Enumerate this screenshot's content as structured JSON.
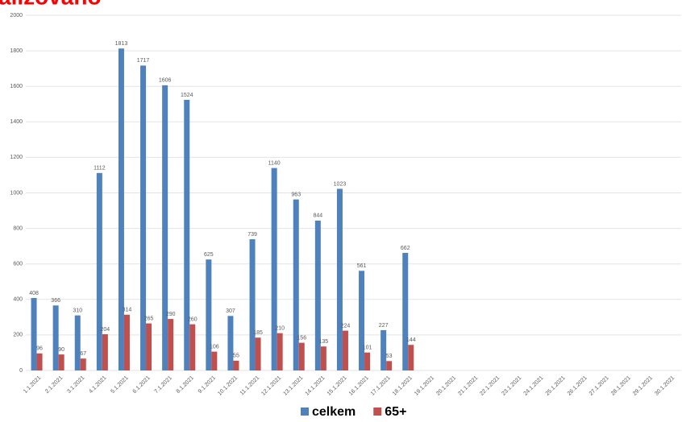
{
  "chart_data": {
    "type": "bar",
    "title": "alizováno",
    "categories": [
      "1.1.2021",
      "2.1.2021",
      "3.1.2021",
      "4.1.2021",
      "5.1.2021",
      "6.1.2021",
      "7.1.2021",
      "8.1.2021",
      "9.1.2021",
      "10.1.2021",
      "11.1.2021",
      "12.1.2021",
      "13.1.2021",
      "14.1.2021",
      "15.1.2021",
      "16.1.2021",
      "17.1.2021",
      "18.1.2021",
      "19.1.2021",
      "20.1.2021",
      "21.1.2021",
      "22.1.2021",
      "23.1.2021",
      "24.1.2021",
      "25.1.2021",
      "26.1.2021",
      "27.1.2021",
      "28.1.2021",
      "29.1.2021",
      "30.1.2021"
    ],
    "series": [
      {
        "name": "celkem",
        "color": "#4f81bd",
        "values": [
          408,
          366,
          310,
          1112,
          1813,
          1717,
          1606,
          1524,
          625,
          307,
          739,
          1140,
          963,
          844,
          1023,
          561,
          227,
          662,
          null,
          null,
          null,
          null,
          null,
          null,
          null,
          null,
          null,
          null,
          null,
          null
        ]
      },
      {
        "name": "65+",
        "color": "#c0504d",
        "values": [
          96,
          90,
          67,
          204,
          314,
          265,
          290,
          260,
          106,
          55,
          185,
          210,
          156,
          135,
          224,
          101,
          53,
          144,
          null,
          null,
          null,
          null,
          null,
          null,
          null,
          null,
          null,
          null,
          null,
          null
        ]
      }
    ],
    "ylim": [
      0,
      2000
    ],
    "yticks": [
      0,
      200,
      400,
      600,
      800,
      1000,
      1200,
      1400,
      1600,
      1800,
      2000
    ],
    "grid": true,
    "legend": "bottom"
  }
}
